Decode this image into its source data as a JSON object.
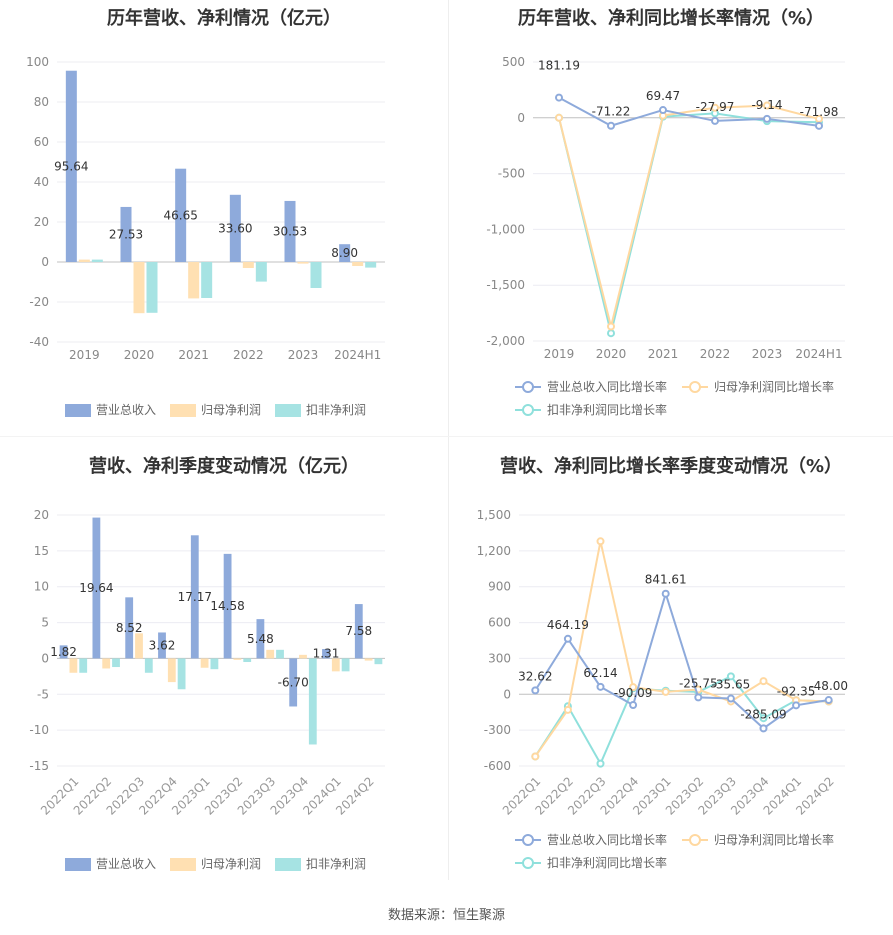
{
  "footer": "数据来源：恒生聚源",
  "colors": {
    "revenue_bar": "#8eaadb",
    "net_bar": "#ffe0b2",
    "deduct_bar": "#a6e3e3",
    "revenue_line": "#8eaadb",
    "net_line": "#ffd8a0",
    "deduct_line": "#8fe0dc"
  },
  "chart_data": [
    {
      "type": "bar",
      "title": "历年营收、净利情况（亿元）",
      "categories": [
        "2019",
        "2020",
        "2021",
        "2022",
        "2023",
        "2024H1"
      ],
      "ylim": [
        -40,
        100
      ],
      "yticks": [
        -40,
        -20,
        0,
        20,
        40,
        60,
        80,
        100
      ],
      "series": [
        {
          "name": "营业总收入",
          "values": [
            95.64,
            27.53,
            46.65,
            33.6,
            30.53,
            8.9
          ],
          "labels": [
            "95.64",
            "27.53",
            "46.65",
            "33.60",
            "30.53",
            "8.90"
          ]
        },
        {
          "name": "归母净利润",
          "values": [
            1.2,
            -25.6,
            -18.2,
            -3.0,
            -0.8,
            -2.0
          ]
        },
        {
          "name": "扣非净利润",
          "values": [
            1.2,
            -25.4,
            -18.0,
            -9.8,
            -13.0,
            -2.8
          ]
        }
      ],
      "grid": true,
      "legend": "bottom"
    },
    {
      "type": "line",
      "title": "历年营收、净利同比增长率情况（%）",
      "categories": [
        "2019",
        "2020",
        "2021",
        "2022",
        "2023",
        "2024H1"
      ],
      "ylim": [
        -2000,
        500
      ],
      "yticks": [
        -2000,
        -1500,
        -1000,
        -500,
        0,
        500
      ],
      "ytick_labels": [
        "-2,000",
        "-1,500",
        "-1,000",
        "-500",
        "0",
        "500"
      ],
      "series": [
        {
          "name": "营业总收入同比增长率",
          "values": [
            181.19,
            -71.22,
            69.47,
            -27.97,
            -9.14,
            -71.98
          ],
          "labels": [
            "181.19",
            "-71.22",
            "69.47",
            "-27.97",
            "-9.14",
            "-71.98"
          ]
        },
        {
          "name": "归母净利润同比增长率",
          "values": [
            0,
            -1870,
            20,
            90,
            110,
            -10
          ]
        },
        {
          "name": "扣非净利润同比增长率",
          "values": [
            0,
            -1930,
            10,
            40,
            -30,
            -40
          ]
        }
      ],
      "grid": true,
      "legend": "bottom"
    },
    {
      "type": "bar",
      "title": "营收、净利季度变动情况（亿元）",
      "categories": [
        "2022Q1",
        "2022Q2",
        "2022Q3",
        "2022Q4",
        "2023Q1",
        "2023Q2",
        "2023Q3",
        "2023Q4",
        "2024Q1",
        "2024Q2"
      ],
      "ylim": [
        -15,
        20
      ],
      "yticks": [
        -15,
        -10,
        -5,
        0,
        5,
        10,
        15,
        20
      ],
      "series": [
        {
          "name": "营业总收入",
          "values": [
            1.82,
            19.64,
            8.52,
            3.62,
            17.17,
            14.58,
            5.48,
            -6.7,
            1.31,
            7.58
          ],
          "labels": [
            "1.82",
            "19.64",
            "8.52",
            "3.62",
            "17.17",
            "14.58",
            "5.48",
            "-6.70",
            "1.31",
            "7.58"
          ]
        },
        {
          "name": "归母净利润",
          "values": [
            -2.0,
            -1.4,
            3.5,
            -3.3,
            -1.3,
            -0.2,
            1.2,
            0.5,
            -1.8,
            -0.3
          ]
        },
        {
          "name": "扣非净利润",
          "values": [
            -2.0,
            -1.2,
            -2.0,
            -4.3,
            -1.5,
            -0.5,
            1.2,
            -12.0,
            -1.8,
            -0.8
          ]
        }
      ],
      "grid": true,
      "legend": "bottom"
    },
    {
      "type": "line",
      "title": "营收、净利同比增长率季度变动情况（%）",
      "categories": [
        "2022Q1",
        "2022Q2",
        "2022Q3",
        "2022Q4",
        "2023Q1",
        "2023Q2",
        "2023Q3",
        "2023Q4",
        "2024Q1",
        "2024Q2"
      ],
      "ylim": [
        -600,
        1500
      ],
      "yticks": [
        -600,
        -300,
        0,
        300,
        600,
        900,
        1200,
        1500
      ],
      "ytick_labels": [
        "-600",
        "-300",
        "0",
        "300",
        "600",
        "900",
        "1,200",
        "1,500"
      ],
      "series": [
        {
          "name": "营业总收入同比增长率",
          "values": [
            32.62,
            464.19,
            62.14,
            -90.09,
            841.61,
            -25.75,
            -35.65,
            -285.09,
            -92.35,
            -48.0
          ],
          "labels": [
            "32.62",
            "464.19",
            "62.14",
            "-90.09",
            "841.61",
            "-25.75",
            "-35.65",
            "-285.09",
            "-92.35",
            "-48.00"
          ]
        },
        {
          "name": "归母净利润同比增长率",
          "values": [
            -520,
            -130,
            1280,
            60,
            20,
            40,
            -60,
            110,
            -50,
            -60
          ]
        },
        {
          "name": "扣非净利润同比增长率",
          "values": [
            -520,
            -100,
            -580,
            50,
            30,
            20,
            150,
            -200,
            -50,
            -60
          ]
        }
      ],
      "grid": true,
      "legend": "bottom"
    }
  ]
}
